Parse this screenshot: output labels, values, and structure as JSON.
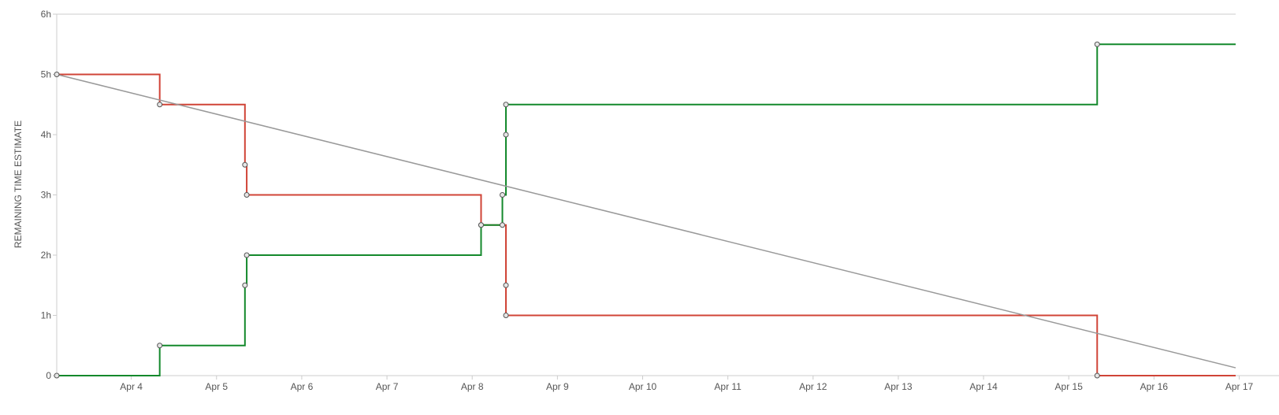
{
  "chart_data": {
    "type": "line",
    "title": "",
    "xlabel": "",
    "ylabel": "REMAINING TIME ESTIMATE",
    "x_ticks": [
      "Apr 4",
      "Apr 5",
      "Apr 6",
      "Apr 7",
      "Apr 8",
      "Apr 9",
      "Apr 10",
      "Apr 11",
      "Apr 12",
      "Apr 13",
      "Apr 14",
      "Apr 15",
      "Apr 16",
      "Apr 17"
    ],
    "y_ticks": [
      "0",
      "1h",
      "2h",
      "3h",
      "4h",
      "5h",
      "6h"
    ],
    "xlim": [
      "Apr 3 15:00",
      "Apr 17 11:00"
    ],
    "ylim": [
      0,
      6
    ],
    "y_unit": "hours",
    "grid": false,
    "legend": "none",
    "series": [
      {
        "color": "#d04437",
        "style": "step",
        "values": [
          {
            "x": "Apr 3 15:00",
            "y": 5
          },
          {
            "x": "Apr 4 20:00",
            "y": 4.5
          },
          {
            "x": "Apr 5 20:00",
            "y": 3.5
          },
          {
            "x": "Apr 5 20:30",
            "y": 3
          },
          {
            "x": "Apr 8 14:30",
            "y": 2.5
          },
          {
            "x": "Apr 8 20:30",
            "y": 2.5
          },
          {
            "x": "Apr 8 21:30",
            "y": 1.5
          },
          {
            "x": "Apr 8 21:30",
            "y": 1
          },
          {
            "x": "Apr 15 20:00",
            "y": 0
          },
          {
            "x": "Apr 17 11:00",
            "y": 0
          }
        ]
      },
      {
        "color": "#14892c",
        "style": "step",
        "values": [
          {
            "x": "Apr 3 15:00",
            "y": 0
          },
          {
            "x": "Apr 4 20:00",
            "y": 0.5
          },
          {
            "x": "Apr 5 20:00",
            "y": 1.5
          },
          {
            "x": "Apr 5 20:30",
            "y": 2
          },
          {
            "x": "Apr 8 14:30",
            "y": 2.5
          },
          {
            "x": "Apr 8 20:30",
            "y": 3
          },
          {
            "x": "Apr 8 21:30",
            "y": 4
          },
          {
            "x": "Apr 8 21:30",
            "y": 4.5
          },
          {
            "x": "Apr 15 20:00",
            "y": 5.5
          },
          {
            "x": "Apr 17 11:00",
            "y": 5.5
          }
        ]
      },
      {
        "color": "#999999",
        "style": "line",
        "values": [
          {
            "x": "Apr 3 15:00",
            "y": 5
          },
          {
            "x": "Apr 17 11:00",
            "y": 0.13
          }
        ]
      }
    ]
  }
}
